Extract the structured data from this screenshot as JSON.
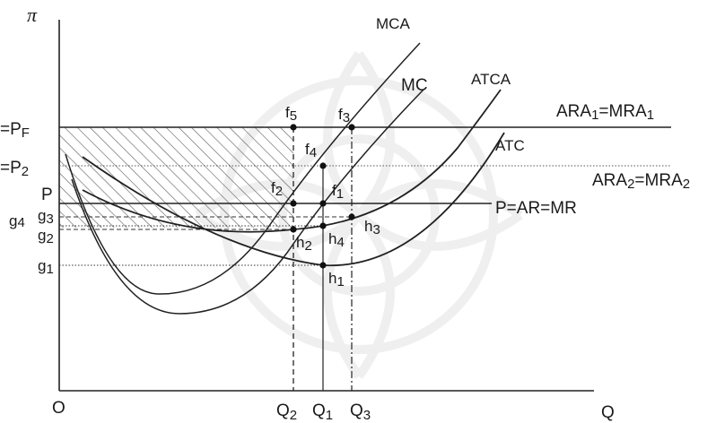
{
  "axes": {
    "y_label": "π",
    "x_label": "Q",
    "origin_label": "O"
  },
  "y_labels": {
    "pf": "=P",
    "pf_sub": "F",
    "p2": "=P",
    "p2_sub": "2",
    "p": "P",
    "g4": "g",
    "g4_sub": "4",
    "g3": "g",
    "g3_sub": "3",
    "g2": "g",
    "g2_sub": "2",
    "g1": "g",
    "g1_sub": "1"
  },
  "x_labels": {
    "q2": "Q",
    "q2_sub": "2",
    "q1": "Q",
    "q1_sub": "1",
    "q3": "Q",
    "q3_sub": "3"
  },
  "curve_labels": {
    "mca": "MCA",
    "mc": "MC",
    "atca": "ATCA",
    "atc": "ATC"
  },
  "line_labels": {
    "ara1_a": "ARA",
    "ara1_a_sub": "1",
    "ara1_b": "=MRA",
    "ara1_b_sub": "1",
    "ara2_a": "ARA",
    "ara2_a_sub": "2",
    "ara2_b": "=MRA",
    "ara2_b_sub": "2",
    "p_ar_mr": "P=AR=MR"
  },
  "points": {
    "f5": "f",
    "f5_sub": "5",
    "f3": "f",
    "f3_sub": "3",
    "f4": "f",
    "f4_sub": "4",
    "f2": "f",
    "f2_sub": "2",
    "f1": "f",
    "f1_sub": "1",
    "h2": "h",
    "h2_sub": "2",
    "h4": "h",
    "h4_sub": "4",
    "h3": "h",
    "h3_sub": "3",
    "h1": "h",
    "h1_sub": "1"
  }
}
